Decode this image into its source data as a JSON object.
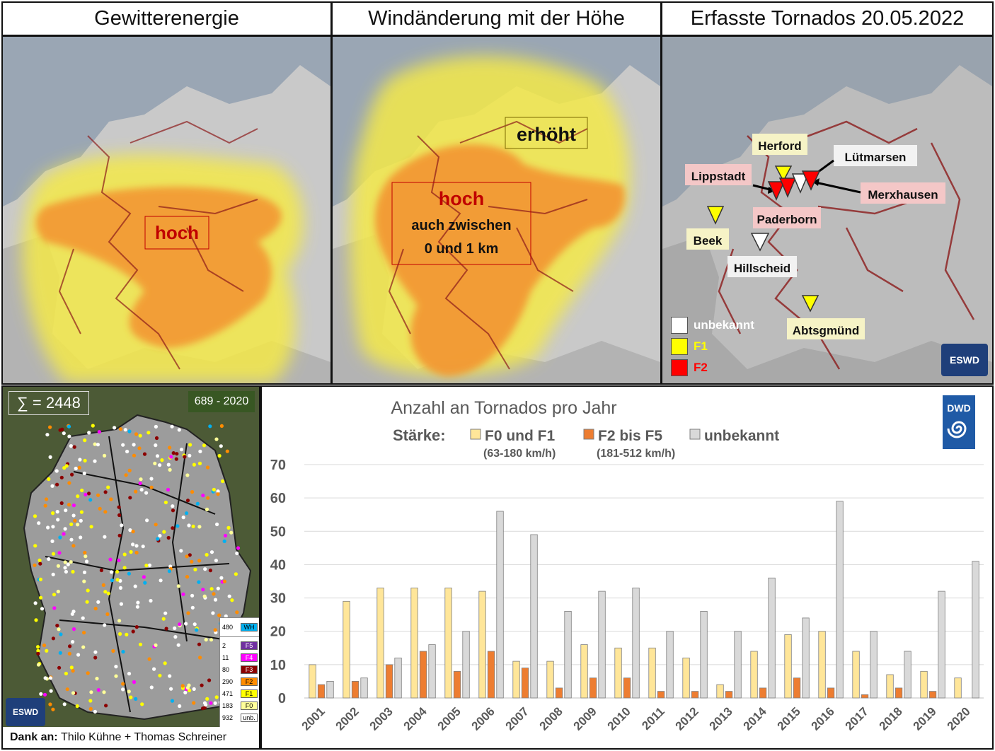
{
  "panels": {
    "energy": {
      "title": "Gewitterenergie",
      "label_high": "hoch"
    },
    "shear": {
      "title": "Windänderung mit der Höhe",
      "label_elevated": "erhöht",
      "label_high": "hoch",
      "label_high_sub1": "auch zwischen",
      "label_high_sub2": "0 und 1 km"
    },
    "tornados": {
      "title": "Erfasste Tornados 20.05.2022",
      "places": [
        "Herford",
        "Lütmarsen",
        "Lippstadt",
        "Merxhausen",
        "Paderborn",
        "Beek",
        "Hillscheid",
        "Abtsgmünd"
      ],
      "legend": [
        {
          "label": "unbekannt",
          "color": "#ffffff"
        },
        {
          "label": "F1",
          "color": "#ffff00"
        },
        {
          "label": "F2",
          "color": "#ff0000"
        }
      ],
      "logo": "ESWD"
    }
  },
  "climatology": {
    "total": "∑ = 2448",
    "period": "689 - 2020",
    "legend": [
      {
        "count": "480",
        "label": "WH",
        "color": "#00b0f0"
      },
      {
        "count": "2",
        "label": "F5",
        "color": "#7030a0"
      },
      {
        "count": "11",
        "label": "F4",
        "color": "#ff00ff"
      },
      {
        "count": "80",
        "label": "F3",
        "color": "#8b0000"
      },
      {
        "count": "290",
        "label": "F2",
        "color": "#ff8c00"
      },
      {
        "count": "471",
        "label": "F1",
        "color": "#ffff00"
      },
      {
        "count": "183",
        "label": "F0",
        "color": "#ffff99"
      },
      {
        "count": "932",
        "label": "unb.",
        "color": "#ffffff"
      }
    ],
    "logo": "ESWD",
    "credits_prefix": "Dank an:",
    "credits": "Thilo Kühne + Thomas Schreiner"
  },
  "chart_data": {
    "type": "bar",
    "title": "Anzahl an Tornados pro Jahr",
    "legend_title": "Stärke:",
    "categories": [
      "2001",
      "2002",
      "2003",
      "2004",
      "2005",
      "2006",
      "2007",
      "2008",
      "2009",
      "2010",
      "2011",
      "2012",
      "2013",
      "2014",
      "2015",
      "2016",
      "2017",
      "2018",
      "2019",
      "2020"
    ],
    "series": [
      {
        "name": "F0 und F1",
        "sub": "(63-180 km/h)",
        "color": "#ffe699",
        "values": [
          10,
          29,
          33,
          33,
          33,
          32,
          11,
          11,
          16,
          15,
          15,
          12,
          4,
          14,
          19,
          20,
          14,
          7,
          8,
          6
        ]
      },
      {
        "name": "F2 bis F5",
        "sub": "(181-512 km/h)",
        "color": "#ed7d31",
        "values": [
          4,
          5,
          10,
          14,
          8,
          14,
          9,
          3,
          6,
          6,
          2,
          2,
          2,
          3,
          6,
          3,
          1,
          3,
          2,
          0
        ]
      },
      {
        "name": "unbekannt",
        "sub": "",
        "color": "#d9d9d9",
        "values": [
          5,
          6,
          12,
          16,
          20,
          56,
          49,
          26,
          32,
          33,
          20,
          26,
          20,
          36,
          24,
          59,
          20,
          14,
          32,
          41
        ]
      }
    ],
    "yticks": [
      "0",
      "10",
      "20",
      "30",
      "40",
      "50",
      "60",
      "70"
    ],
    "ylim": [
      0,
      70
    ],
    "grid": true,
    "logo": "DWD"
  }
}
